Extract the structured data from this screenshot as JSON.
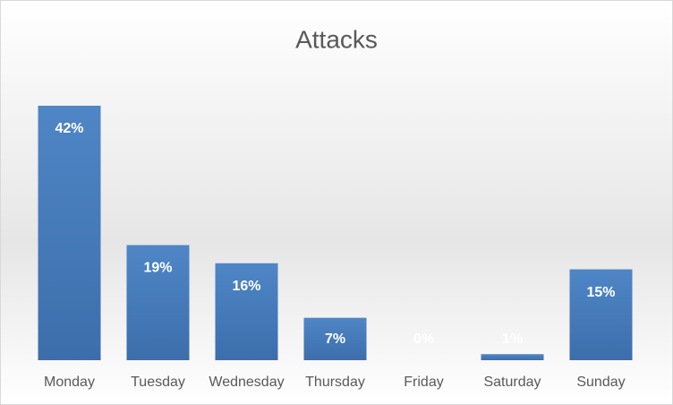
{
  "chart_data": {
    "type": "bar",
    "title": "Attacks",
    "categories": [
      "Monday",
      "Tuesday",
      "Wednesday",
      "Thursday",
      "Friday",
      "Saturday",
      "Sunday"
    ],
    "values": [
      42,
      19,
      16,
      7,
      0,
      1,
      15
    ],
    "value_labels": [
      "42%",
      "19%",
      "16%",
      "7%",
      "0%",
      "1%",
      "15%"
    ],
    "color": "#4a7ebb"
  }
}
